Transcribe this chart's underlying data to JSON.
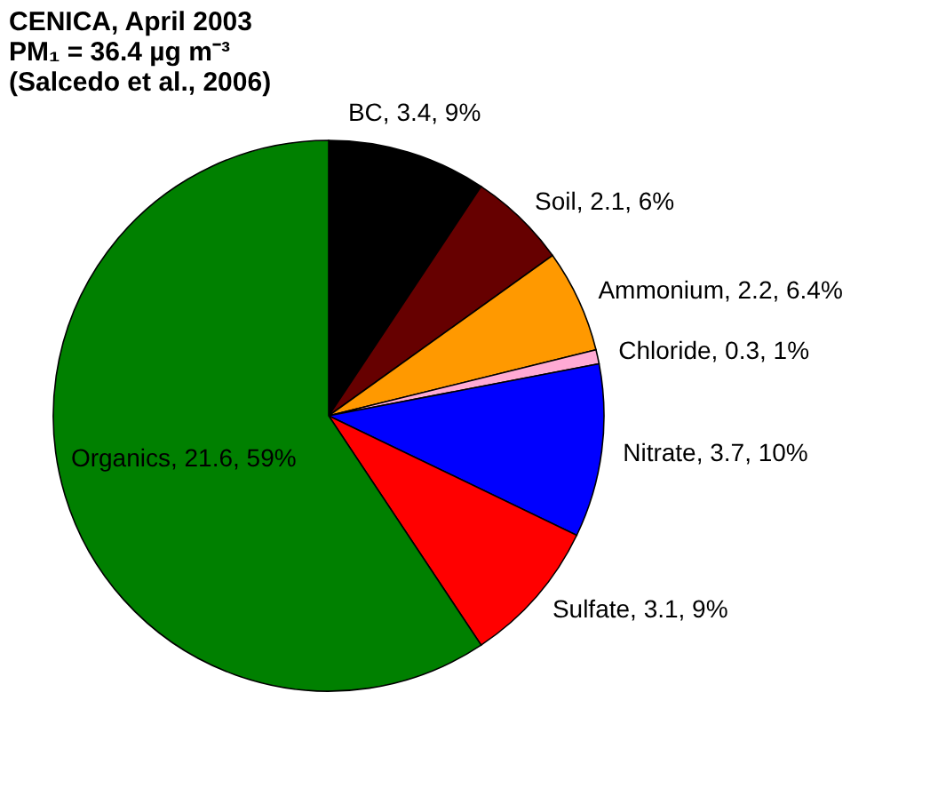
{
  "chart_data": {
    "type": "pie",
    "title": "CENICA, April 2003",
    "subtitle": "PM₁ = 36.4 µg m⁻³\n(Salcedo et al., 2006)",
    "categories": [
      "BC",
      "Soil",
      "Ammonium",
      "Chloride",
      "Nitrate",
      "Sulfate",
      "Organics"
    ],
    "values": [
      3.4,
      2.1,
      2.2,
      0.3,
      3.7,
      3.1,
      21.6
    ],
    "value_labels": [
      "3.4, 9%",
      "2.1, 6%",
      "2.2, 6.4%",
      "0.3, 1%",
      "3.7, 10%",
      "3.1, 9%",
      "21.6, 59%"
    ],
    "colors": [
      "#000000",
      "#660000",
      "#ff9900",
      "#ffaad4",
      "#0000ff",
      "#ff0000",
      "#008000"
    ],
    "legend": false
  }
}
